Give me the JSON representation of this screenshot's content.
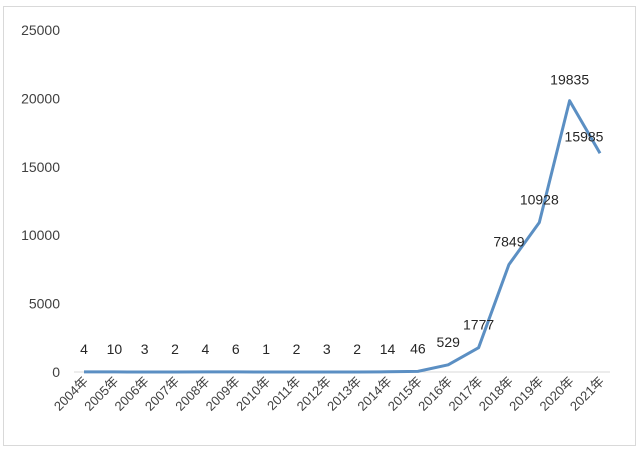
{
  "chart_data": {
    "type": "line",
    "title": "",
    "xlabel": "",
    "ylabel": "",
    "ylim": [
      0,
      25000
    ],
    "yticks": [
      0,
      5000,
      10000,
      15000,
      20000,
      25000
    ],
    "grid": false,
    "legend": "none",
    "line_color": "#5b8fc3",
    "categories": [
      "2004年",
      "2005年",
      "2006年",
      "2007年",
      "2008年",
      "2009年",
      "2010年",
      "2011年",
      "2012年",
      "2013年",
      "2014年",
      "2015年",
      "2016年",
      "2017年",
      "2018年",
      "2019年",
      "2020年",
      "2021年"
    ],
    "values": [
      4,
      10,
      3,
      2,
      4,
      6,
      1,
      2,
      3,
      2,
      14,
      46,
      529,
      1777,
      7849,
      10928,
      19835,
      15985
    ]
  }
}
